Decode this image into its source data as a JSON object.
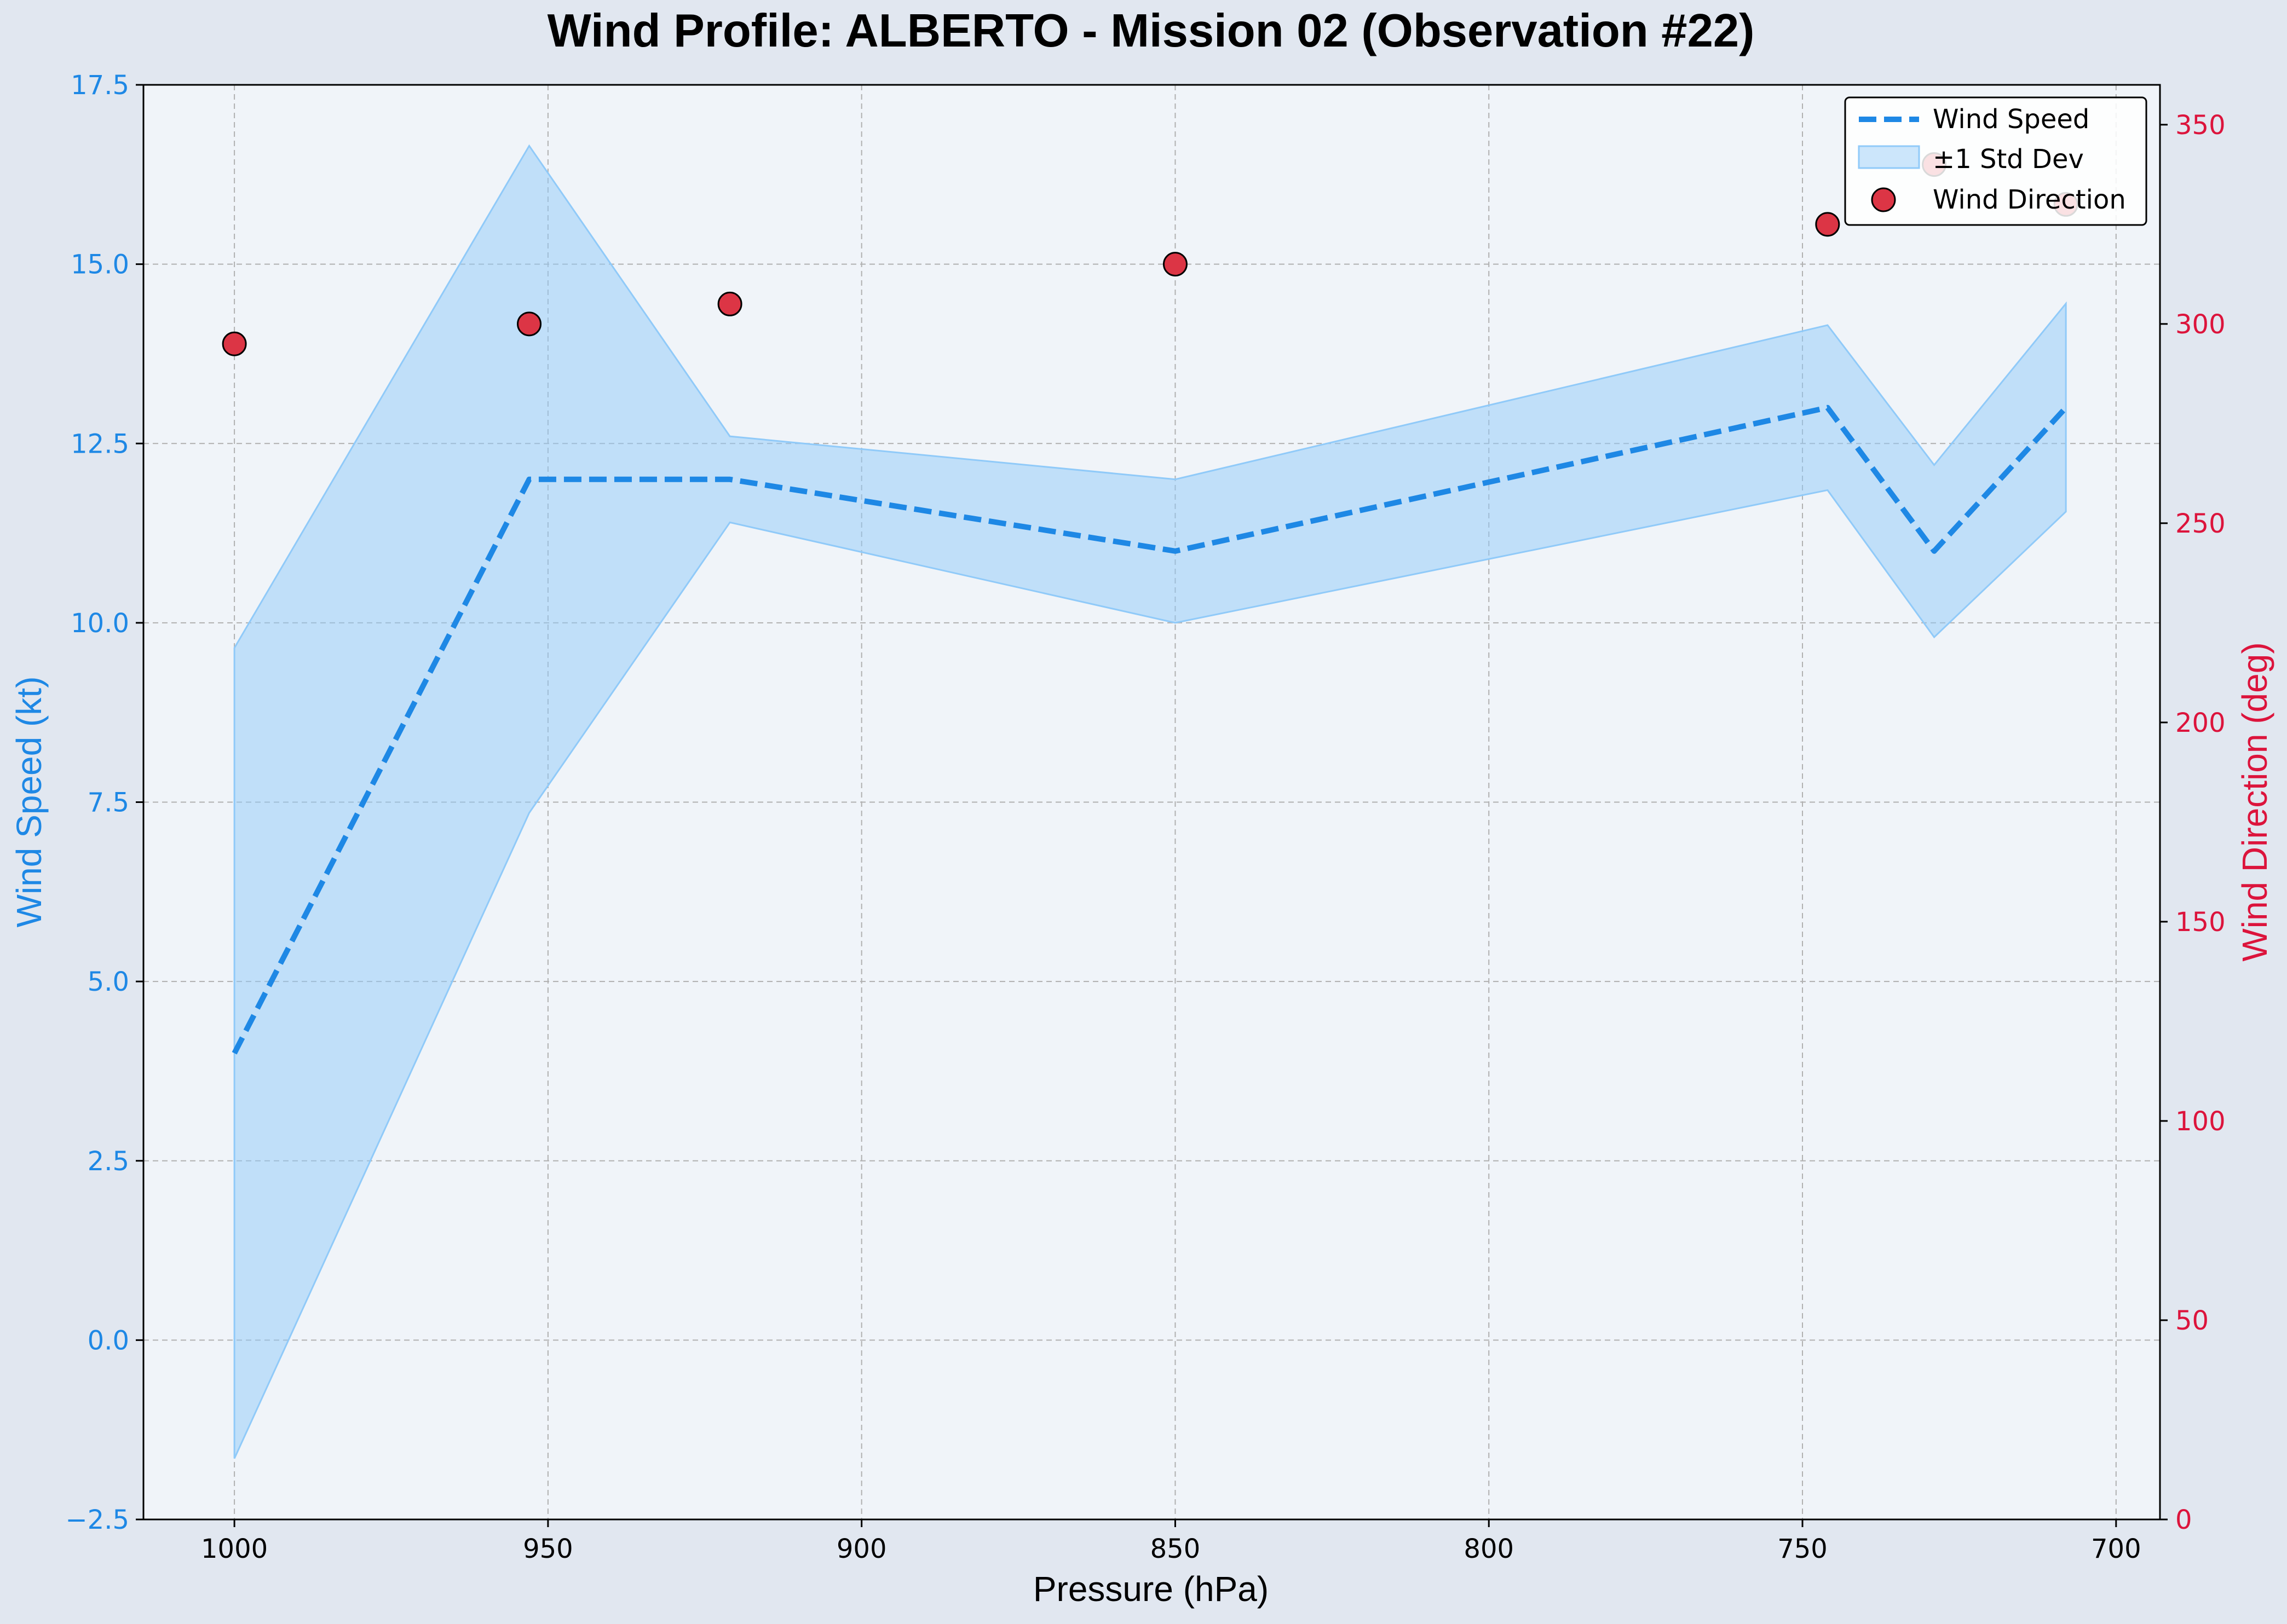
{
  "chart_data": {
    "type": "line",
    "title": "Wind Profile: ALBERTO - Mission 02 (Observation #22)",
    "xlabel": "Pressure (hPa)",
    "ylabel": "Wind Speed (kt)",
    "y2label": "Wind Direction (deg)",
    "x_inverted": true,
    "xlim": [
      1014.5,
      693
    ],
    "ylim": [
      -2.5,
      17.5
    ],
    "y2lim": [
      0,
      360
    ],
    "xticks": [
      "1000",
      "950",
      "900",
      "850",
      "800",
      "750",
      "700"
    ],
    "yticks": [
      "−2.5",
      "0.0",
      "2.5",
      "5.0",
      "7.5",
      "10.0",
      "12.5",
      "15.0",
      "17.5"
    ],
    "y2ticks": [
      "0",
      "50",
      "100",
      "150",
      "200",
      "250",
      "300",
      "350"
    ],
    "grid": true,
    "legend_position": "upper right",
    "x": [
      1000,
      953,
      921,
      850,
      746,
      729,
      708
    ],
    "series": [
      {
        "name": "Wind Speed",
        "kind": "line",
        "style": "dashed",
        "axis": "left",
        "color": "#1e88e5",
        "values": [
          4,
          12,
          12,
          11,
          13,
          11,
          13
        ]
      },
      {
        "name": "±1 Std Dev",
        "kind": "band",
        "axis": "left",
        "color": "#90caf9",
        "upper": [
          9.65,
          16.65,
          12.6,
          12.0,
          14.15,
          12.2,
          14.45
        ],
        "lower": [
          -1.65,
          7.35,
          11.4,
          10.0,
          11.85,
          9.8,
          11.55
        ]
      },
      {
        "name": "Wind Direction",
        "kind": "scatter",
        "axis": "right",
        "color": "#dc3545",
        "values": [
          295,
          300,
          305,
          315,
          325,
          340,
          330
        ]
      }
    ]
  }
}
